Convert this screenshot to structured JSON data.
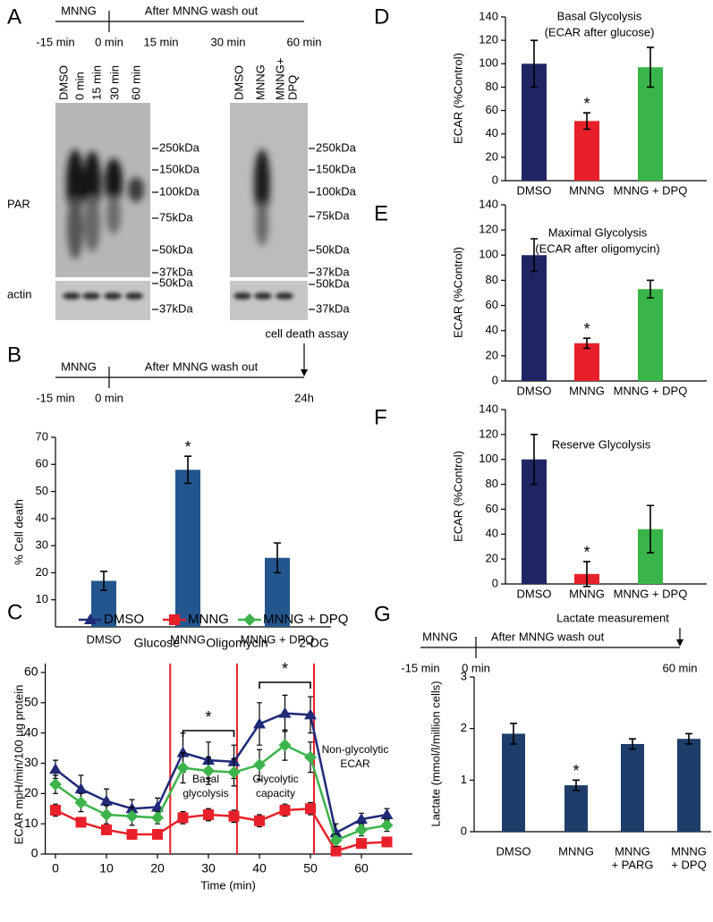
{
  "panel_labels": [
    "A",
    "B",
    "C",
    "D",
    "E",
    "F",
    "G"
  ],
  "panel_a": {
    "timeline": {
      "phases": [
        "MNNG",
        "After MNNG wash out"
      ],
      "times": [
        "-15 min",
        "0 min",
        "15 min",
        "30 min",
        "60 min"
      ]
    },
    "blot_left_lanes": [
      [
        "DMSO"
      ],
      [
        "0 min"
      ],
      [
        "15 min"
      ],
      [
        "30 min"
      ],
      [
        "60 min"
      ]
    ],
    "blot_right_lanes": [
      [
        "DMSO"
      ],
      [
        "MNNG"
      ],
      [
        "MNNG+",
        "DPQ"
      ]
    ],
    "rows": [
      "PAR",
      "actin"
    ],
    "markers_par": [
      "250kDa",
      "150kDa",
      "100kDa",
      "75kDa",
      "50kDa",
      "37kDa"
    ],
    "markers_actin": [
      "50kDa",
      "37kDa"
    ]
  },
  "panel_b_timeline": {
    "phases": [
      "MNNG",
      "After MNNG wash out"
    ],
    "times": [
      "-15 min",
      "0 min",
      "24h"
    ],
    "endpoint": "cell death assay"
  },
  "panel_g_timeline": {
    "phases": [
      "MNNG",
      "After MNNG wash out"
    ],
    "times": [
      "-15 min",
      "0 min",
      "60 min"
    ],
    "endpoint": "Lactate measurement"
  },
  "chart_data": [
    {
      "type": "bar",
      "ylabel": "% Cell death",
      "categories": [
        [
          "DMSO"
        ],
        [
          "MNNG"
        ],
        [
          "MNNG + DPQ"
        ]
      ],
      "values": [
        17,
        58,
        25.5
      ],
      "errors": [
        3.5,
        5,
        5.5
      ],
      "color": "#23568e",
      "ylim": [
        0,
        70
      ],
      "yticks": [
        10,
        20,
        30,
        40,
        50,
        60,
        70
      ],
      "significance": [
        {
          "category": "MNNG",
          "label": "*"
        }
      ]
    },
    {
      "type": "line",
      "xlabel": "Time (min)",
      "ylabel": "ECAR mpH/min/100 µg protein",
      "x": [
        0,
        5,
        10,
        15,
        20,
        25,
        30,
        35,
        40,
        45,
        50,
        55,
        60,
        65
      ],
      "series": [
        {
          "name": "DMSO",
          "color": "#1f2a78",
          "marker": "triangle",
          "values": [
            28,
            21.5,
            17.5,
            15,
            15.5,
            33.5,
            31,
            30.5,
            43,
            46.5,
            46,
            7,
            11.5,
            13
          ],
          "errors": [
            3,
            4.5,
            4,
            3,
            3,
            6.5,
            6,
            5.5,
            7,
            6,
            6,
            3,
            2,
            2
          ]
        },
        {
          "name": "MNNG",
          "color": "#e8202a",
          "marker": "square",
          "values": [
            14.5,
            10.5,
            8,
            6.5,
            6.5,
            12,
            13,
            12.5,
            11,
            14.5,
            15,
            1,
            3.5,
            4
          ],
          "errors": [
            2,
            1.5,
            1.5,
            1.5,
            1.5,
            2,
            2,
            2,
            2,
            2,
            2,
            1,
            1.5,
            1.5
          ]
        },
        {
          "name": "MNNG + DPQ",
          "color": "#3cb44b",
          "marker": "diamond",
          "values": [
            23,
            17,
            13,
            12.5,
            12,
            28.5,
            27.5,
            27,
            29.5,
            36,
            32,
            4.5,
            8,
            9.5
          ],
          "errors": [
            3,
            3,
            3,
            3,
            2,
            5,
            4.5,
            4.5,
            5,
            5,
            5,
            2,
            2,
            2
          ]
        }
      ],
      "xlim": [
        -2,
        70
      ],
      "ylim": [
        0,
        60
      ],
      "xticks": [
        0,
        10,
        20,
        30,
        40,
        50,
        60
      ],
      "yticks": [
        0,
        10,
        20,
        30,
        40,
        50,
        60
      ],
      "events": [
        {
          "x": 22.5,
          "label": "Glucose"
        },
        {
          "x": 35.6,
          "label": "Oligomycin"
        },
        {
          "x": 50.7,
          "label": "2-DG"
        }
      ],
      "significance": [
        {
          "x": [
            25,
            35
          ],
          "label": "*"
        },
        {
          "x": [
            40,
            50
          ],
          "label": "*"
        }
      ],
      "annotations": [
        [
          "Basal",
          "glycolysis"
        ],
        [
          "Glycolytic",
          "capacity"
        ],
        [
          "Non-glycolytic",
          "ECAR"
        ]
      ]
    },
    {
      "type": "bar",
      "ylabel": "ECAR (%Control)",
      "title_lines": [
        "Basal Glycolysis",
        "(ECAR after glucose)"
      ],
      "categories": [
        [
          "DMSO"
        ],
        [
          "MNNG"
        ],
        [
          "MNNG + DPQ"
        ]
      ],
      "values": [
        100,
        51,
        97
      ],
      "errors": [
        20,
        7,
        17
      ],
      "colors": [
        "#1f2563",
        "#e8202a",
        "#39b54a"
      ],
      "ylim": [
        0,
        140
      ],
      "yticks": [
        0,
        20,
        40,
        60,
        80,
        100,
        120,
        140
      ],
      "significance": [
        {
          "category": "MNNG",
          "label": "*"
        }
      ]
    },
    {
      "type": "bar",
      "ylabel": "ECAR (%Control)",
      "title_lines": [
        "Maximal Glycolysis",
        "(ECAR after oligomycin)"
      ],
      "categories": [
        [
          "DMSO"
        ],
        [
          "MNNG"
        ],
        [
          "MNNG + DPQ"
        ]
      ],
      "values": [
        100,
        30,
        73
      ],
      "errors": [
        13,
        4,
        7
      ],
      "colors": [
        "#1f2563",
        "#e8202a",
        "#39b54a"
      ],
      "ylim": [
        0,
        140
      ],
      "yticks": [
        0,
        20,
        40,
        60,
        80,
        100,
        120,
        140
      ],
      "significance": [
        {
          "category": "MNNG",
          "label": "*"
        }
      ]
    },
    {
      "type": "bar",
      "ylabel": "ECAR (%Control)",
      "title_lines": [
        "Reserve Glycolysis"
      ],
      "categories": [
        [
          "DMSO"
        ],
        [
          "MNNG"
        ],
        [
          "MNNG + DPQ"
        ]
      ],
      "values": [
        100,
        8,
        44
      ],
      "errors": [
        20,
        10,
        19
      ],
      "colors": [
        "#1f2563",
        "#e8202a",
        "#39b54a"
      ],
      "ylim": [
        0,
        140
      ],
      "yticks": [
        0,
        20,
        40,
        60,
        80,
        100,
        120,
        140
      ],
      "significance": [
        {
          "category": "MNNG",
          "label": "*"
        }
      ]
    },
    {
      "type": "bar",
      "ylabel": "Lactate (mmol/l/million cells)",
      "categories": [
        [
          "DMSO"
        ],
        [
          "MNNG"
        ],
        [
          "MNNG",
          "+ PARG"
        ],
        [
          "MNNG",
          "+ DPQ"
        ]
      ],
      "values": [
        1.9,
        0.9,
        1.7,
        1.8
      ],
      "errors": [
        0.2,
        0.1,
        0.1,
        0.1
      ],
      "color": "#1f3d6a",
      "ylim": [
        0,
        3
      ],
      "yticks": [
        0,
        1,
        2,
        3
      ],
      "significance": [
        {
          "category": "MNNG",
          "label": "*"
        }
      ]
    }
  ]
}
